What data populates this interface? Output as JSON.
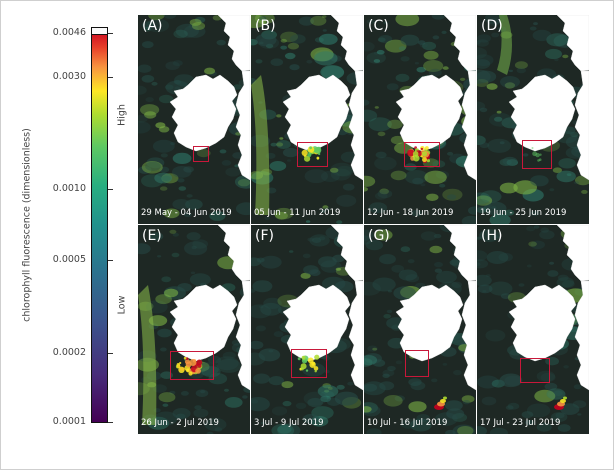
{
  "colorbar": {
    "label": "chlorophyll fluorescence (dimensionless)",
    "high_label": "High",
    "low_label": "Low",
    "ticks": [
      "0.0046",
      "0.0030",
      "0.0010",
      "0.0005",
      "0.0002",
      "0.0001"
    ],
    "colors": [
      "#440154",
      "#3b528b",
      "#21918c",
      "#5ec962",
      "#fde725",
      "#e8402a",
      "#c6001e"
    ]
  },
  "panels": [
    {
      "label": "(A)",
      "date": "29 May - 04 Jun 2019",
      "bloom": "none"
    },
    {
      "label": "(B)",
      "date": "05 Jun - 11 Jun 2019",
      "bloom": "moderate"
    },
    {
      "label": "(C)",
      "date": "12 Jun - 18 Jun 2019",
      "bloom": "strong"
    },
    {
      "label": "(D)",
      "date": "19 Jun - 25 Jun 2019",
      "bloom": "weak"
    },
    {
      "label": "(E)",
      "date": "26 Jun - 2 Jul 2019",
      "bloom": "strong"
    },
    {
      "label": "(F)",
      "date": "3 Jul - 9 Jul 2019",
      "bloom": "moderate"
    },
    {
      "label": "(G)",
      "date": "10 Jul - 16 Jul 2019",
      "bloom": "offshore"
    },
    {
      "label": "(H)",
      "date": "17 Jul - 23 Jul 2019",
      "bloom": "offshore"
    }
  ]
}
